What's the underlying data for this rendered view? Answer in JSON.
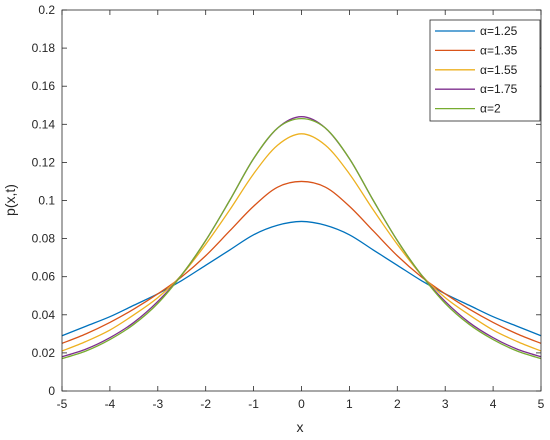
{
  "chart_data": {
    "type": "line",
    "xlabel": "x",
    "ylabel": "p(x,t)",
    "xlim": [
      -5,
      5
    ],
    "ylim": [
      0,
      0.2
    ],
    "xticks": [
      "-5",
      "-4",
      "-3",
      "-2",
      "-1",
      "0",
      "1",
      "2",
      "3",
      "4",
      "5"
    ],
    "yticks": [
      "0",
      "0.02",
      "0.04",
      "0.06",
      "0.08",
      "0.1",
      "0.12",
      "0.14",
      "0.16",
      "0.18",
      "0.2"
    ],
    "grid": false,
    "legend_position": "top-right",
    "series": [
      {
        "name": "α=1.25",
        "color": "#0072BD",
        "x": [
          -5,
          -4.5,
          -4,
          -3.5,
          -3,
          -2.5,
          -2,
          -1.5,
          -1,
          -0.5,
          0,
          0.5,
          1,
          1.5,
          2,
          2.5,
          3,
          3.5,
          4,
          4.5,
          5
        ],
        "y": [
          0.029,
          0.034,
          0.039,
          0.045,
          0.051,
          0.058,
          0.066,
          0.074,
          0.082,
          0.087,
          0.089,
          0.087,
          0.082,
          0.074,
          0.066,
          0.058,
          0.051,
          0.045,
          0.039,
          0.034,
          0.029
        ]
      },
      {
        "name": "α=1.35",
        "color": "#D95319",
        "x": [
          -5,
          -4.5,
          -4,
          -3.5,
          -3,
          -2.5,
          -2,
          -1.5,
          -1,
          -0.5,
          0,
          0.5,
          1,
          1.5,
          2,
          2.5,
          3,
          3.5,
          4,
          4.5,
          5
        ],
        "y": [
          0.025,
          0.03,
          0.036,
          0.043,
          0.051,
          0.06,
          0.071,
          0.084,
          0.097,
          0.107,
          0.11,
          0.107,
          0.097,
          0.084,
          0.071,
          0.06,
          0.051,
          0.043,
          0.036,
          0.03,
          0.025
        ]
      },
      {
        "name": "α=1.55",
        "color": "#EDB120",
        "x": [
          -5,
          -4.5,
          -4,
          -3.5,
          -3,
          -2.5,
          -2,
          -1.5,
          -1,
          -0.5,
          0,
          0.5,
          1,
          1.5,
          2,
          2.5,
          3,
          3.5,
          4,
          4.5,
          5
        ],
        "y": [
          0.021,
          0.026,
          0.032,
          0.04,
          0.049,
          0.061,
          0.077,
          0.095,
          0.114,
          0.129,
          0.135,
          0.129,
          0.114,
          0.095,
          0.077,
          0.061,
          0.049,
          0.04,
          0.032,
          0.026,
          0.021
        ]
      },
      {
        "name": "α=1.75",
        "color": "#7E2F8E",
        "x": [
          -5,
          -4.5,
          -4,
          -3.5,
          -3,
          -2.5,
          -2,
          -1.5,
          -1,
          -0.5,
          0,
          0.5,
          1,
          1.5,
          2,
          2.5,
          3,
          3.5,
          4,
          4.5,
          5
        ],
        "y": [
          0.018,
          0.022,
          0.028,
          0.036,
          0.047,
          0.061,
          0.079,
          0.1,
          0.122,
          0.138,
          0.144,
          0.138,
          0.122,
          0.1,
          0.079,
          0.061,
          0.047,
          0.036,
          0.028,
          0.022,
          0.018
        ]
      },
      {
        "name": "α=2",
        "color": "#77AC30",
        "x": [
          -5,
          -4.5,
          -4,
          -3.5,
          -3,
          -2.5,
          -2,
          -1.5,
          -1,
          -0.5,
          0,
          0.5,
          1,
          1.5,
          2,
          2.5,
          3,
          3.5,
          4,
          4.5,
          5
        ],
        "y": [
          0.017,
          0.021,
          0.027,
          0.035,
          0.046,
          0.061,
          0.079,
          0.1,
          0.122,
          0.138,
          0.143,
          0.138,
          0.122,
          0.1,
          0.079,
          0.061,
          0.046,
          0.035,
          0.027,
          0.021,
          0.017
        ]
      }
    ]
  }
}
